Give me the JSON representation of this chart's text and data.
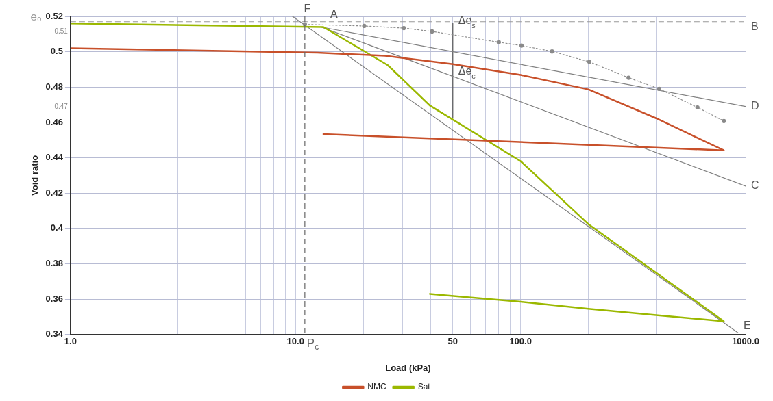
{
  "chart_data": {
    "type": "line",
    "xlabel": "Load (kPa)",
    "ylabel": "Void ratio",
    "log": "x",
    "grid": true,
    "legend": "bottom",
    "marker": "none",
    "xlim": [
      1,
      1000
    ],
    "ylim": [
      0.34,
      0.52
    ],
    "xticks": [
      {
        "value": 1,
        "label": "1.0"
      },
      {
        "value": 2,
        "label": null
      },
      {
        "value": 3,
        "label": null
      },
      {
        "value": 4,
        "label": null
      },
      {
        "value": 5,
        "label": null
      },
      {
        "value": 6,
        "label": null
      },
      {
        "value": 7,
        "label": null
      },
      {
        "value": 8,
        "label": null
      },
      {
        "value": 9,
        "label": null
      },
      {
        "value": 10,
        "label": "10.0"
      },
      {
        "value": 20,
        "label": null
      },
      {
        "value": 30,
        "label": null
      },
      {
        "value": 40,
        "label": null
      },
      {
        "value": 50,
        "label": "50"
      },
      {
        "value": 60,
        "label": null
      },
      {
        "value": 70,
        "label": null
      },
      {
        "value": 80,
        "label": null
      },
      {
        "value": 90,
        "label": null
      },
      {
        "value": 100,
        "label": "100.0"
      },
      {
        "value": 200,
        "label": null
      },
      {
        "value": 300,
        "label": null
      },
      {
        "value": 400,
        "label": null
      },
      {
        "value": 500,
        "label": null
      },
      {
        "value": 600,
        "label": null
      },
      {
        "value": 700,
        "label": null
      },
      {
        "value": 800,
        "label": null
      },
      {
        "value": 900,
        "label": null
      },
      {
        "value": 1000,
        "label": "1000.0"
      }
    ],
    "yticks": [
      0.34,
      0.36,
      0.38,
      0.4,
      0.42,
      0.44,
      0.46,
      0.48,
      0.5,
      0.52
    ],
    "series": [
      {
        "name": "NMC",
        "type": "line",
        "color": "#c8502a",
        "x": [
          1,
          12.5,
          25,
          50,
          100,
          200,
          400,
          800,
          13.3
        ],
        "values": [
          0.502,
          0.4995,
          0.4977,
          0.493,
          0.4869,
          0.4787,
          0.4624,
          0.4442,
          0.4534
        ]
      },
      {
        "name": "Sat",
        "type": "line",
        "color": "#9bb800",
        "x": [
          1,
          13.3,
          25.7,
          39.5,
          100,
          200,
          800,
          400,
          200,
          100,
          39.5
        ],
        "values": [
          0.516,
          0.514,
          0.4924,
          0.4696,
          0.4381,
          0.4025,
          0.3475,
          0.351,
          0.3545,
          0.3585,
          0.363
        ]
      },
      {
        "type": "line",
        "color": "#8a8a8a",
        "line_style": "dotted",
        "marker": "circle",
        "x": [
          11,
          20.2,
          30.3,
          40.4,
          80,
          101,
          138,
          202,
          302,
          413,
          611,
          801
        ],
        "values": [
          0.5155,
          0.5146,
          0.5134,
          0.5115,
          0.5054,
          0.5035,
          0.5002,
          0.4943,
          0.4853,
          0.479,
          0.4685,
          0.4608
        ]
      },
      {
        "type": "line",
        "color": "#808080",
        "x": [
          13,
          1000
        ],
        "values": [
          0.514,
          0.514
        ]
      },
      {
        "type": "line",
        "color": "#808080",
        "x": [
          13,
          1000
        ],
        "values": [
          0.514,
          0.469
        ]
      },
      {
        "type": "line",
        "color": "#808080",
        "x": [
          13,
          1000
        ],
        "values": [
          0.514,
          0.424
        ]
      },
      {
        "type": "line",
        "color": "#808080",
        "x": [
          9.7,
          925
        ],
        "values": [
          0.52,
          0.341
        ]
      },
      {
        "type": "line",
        "color": "#555555",
        "x": [
          50,
          50
        ],
        "values": [
          0.516,
          0.4624
        ]
      }
    ],
    "ref_lines": [
      {
        "axis": "y",
        "value": 0.517,
        "label": "e₀",
        "color": "#999999",
        "line_style": "dashed"
      },
      {
        "axis": "x",
        "value": 11,
        "label": "P$_{c}$",
        "color": "#666666",
        "line_style": "dashed"
      }
    ],
    "annotations": [
      "0.51",
      "0.47",
      {
        "text": "F",
        "x": 10.3,
        "y": 0.52
      },
      {
        "text": "A",
        "x": 13.5,
        "y": 0.517
      },
      {
        "text": "B",
        "x": 1000,
        "y": 0.514
      },
      {
        "text": "D",
        "x": 1000,
        "y": 0.469
      },
      {
        "text": "C",
        "x": 1000,
        "y": 0.424
      },
      {
        "text": "E",
        "x": 925,
        "y": 0.341
      },
      {
        "text": "Δe$_{s}$",
        "x": 50,
        "y": 0.5135
      },
      {
        "text": "Δe$_{c}$",
        "x": 50,
        "y": 0.485
      }
    ]
  }
}
